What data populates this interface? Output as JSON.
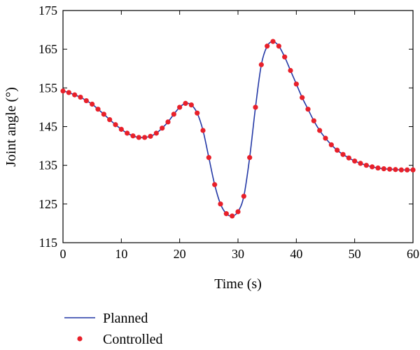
{
  "chart_data": {
    "type": "line",
    "xlabel": "Time (s)",
    "ylabel": "Joint angle (°)",
    "xlim": [
      0,
      60
    ],
    "ylim": [
      115,
      175
    ],
    "xticks": [
      0,
      10,
      20,
      30,
      40,
      50,
      60
    ],
    "yticks": [
      115,
      125,
      135,
      145,
      155,
      165,
      175
    ],
    "grid": false,
    "legend_position": "bottom-left, below plot",
    "series": [
      {
        "name": "Planned",
        "style": "line",
        "color": "#2338a6",
        "x": [
          0,
          1,
          2,
          3,
          4,
          5,
          6,
          7,
          8,
          9,
          10,
          11,
          12,
          13,
          14,
          15,
          16,
          17,
          18,
          19,
          20,
          21,
          22,
          23,
          24,
          25,
          26,
          27,
          28,
          29,
          30,
          31,
          32,
          33,
          34,
          35,
          36,
          37,
          38,
          39,
          40,
          41,
          42,
          43,
          44,
          45,
          46,
          47,
          48,
          49,
          50,
          51,
          52,
          53,
          54,
          55,
          56,
          57,
          58,
          59,
          60
        ],
        "values": [
          154.2,
          153.8,
          153.2,
          152.6,
          151.7,
          150.8,
          149.5,
          148.2,
          146.8,
          145.5,
          144.3,
          143.3,
          142.6,
          142.2,
          142.2,
          142.5,
          143.3,
          144.6,
          146.2,
          148.2,
          150.0,
          151.0,
          150.6,
          148.5,
          144.0,
          137.0,
          130.0,
          125.0,
          122.5,
          121.9,
          123.0,
          127.0,
          137.0,
          150.0,
          161.0,
          165.8,
          167.0,
          165.8,
          163.0,
          159.5,
          156.0,
          152.5,
          149.5,
          146.5,
          144.0,
          142.0,
          140.3,
          138.9,
          137.8,
          136.9,
          136.1,
          135.5,
          135.0,
          134.6,
          134.3,
          134.1,
          134.0,
          133.9,
          133.8,
          133.8,
          133.8
        ]
      },
      {
        "name": "Controlled",
        "style": "markers",
        "color": "#e8202a",
        "x": [
          0,
          1,
          2,
          3,
          4,
          5,
          6,
          7,
          8,
          9,
          10,
          11,
          12,
          13,
          14,
          15,
          16,
          17,
          18,
          19,
          20,
          21,
          22,
          23,
          24,
          25,
          26,
          27,
          28,
          29,
          30,
          31,
          32,
          33,
          34,
          35,
          36,
          37,
          38,
          39,
          40,
          41,
          42,
          43,
          44,
          45,
          46,
          47,
          48,
          49,
          50,
          51,
          52,
          53,
          54,
          55,
          56,
          57,
          58,
          59,
          60
        ],
        "values": [
          154.2,
          153.8,
          153.2,
          152.6,
          151.7,
          150.8,
          149.5,
          148.2,
          146.8,
          145.5,
          144.3,
          143.3,
          142.6,
          142.2,
          142.2,
          142.5,
          143.3,
          144.6,
          146.2,
          148.2,
          150.0,
          151.0,
          150.6,
          148.5,
          144.0,
          137.0,
          130.0,
          125.0,
          122.5,
          121.9,
          123.0,
          127.0,
          137.0,
          150.0,
          161.0,
          165.8,
          167.0,
          165.8,
          163.0,
          159.5,
          156.0,
          152.5,
          149.5,
          146.5,
          144.0,
          142.0,
          140.3,
          138.9,
          137.8,
          136.9,
          136.1,
          135.5,
          135.0,
          134.6,
          134.3,
          134.1,
          134.0,
          133.9,
          133.8,
          133.8,
          133.8
        ]
      }
    ]
  }
}
